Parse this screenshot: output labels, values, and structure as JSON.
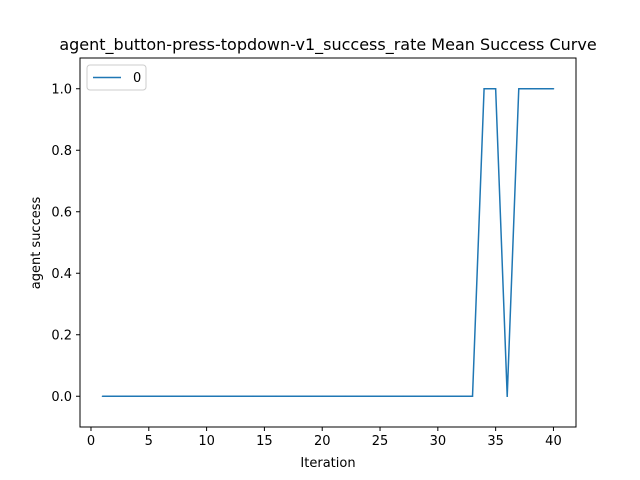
{
  "chart_data": {
    "type": "line",
    "title": "agent_button-press-topdown-v1_success_rate Mean Success Curve",
    "xlabel": "Iteration",
    "ylabel": "agent success",
    "xlim": [
      -0.95,
      41.95
    ],
    "ylim": [
      -0.1,
      1.1
    ],
    "xticks": [
      0,
      5,
      10,
      15,
      20,
      25,
      30,
      35,
      40
    ],
    "yticks": [
      0.0,
      0.2,
      0.4,
      0.6,
      0.8,
      1.0
    ],
    "xtick_labels": [
      "0",
      "5",
      "10",
      "15",
      "20",
      "25",
      "30",
      "35",
      "40"
    ],
    "ytick_labels": [
      "0.0",
      "0.2",
      "0.4",
      "0.6",
      "0.8",
      "1.0"
    ],
    "grid": false,
    "legend_position": "top-left",
    "series": [
      {
        "name": "0",
        "color": "#1f77b4",
        "x": [
          1,
          2,
          3,
          4,
          5,
          6,
          7,
          8,
          9,
          10,
          11,
          12,
          13,
          14,
          15,
          16,
          17,
          18,
          19,
          20,
          21,
          22,
          23,
          24,
          25,
          26,
          27,
          28,
          29,
          30,
          31,
          32,
          33,
          34,
          35,
          36,
          37,
          38,
          39,
          40
        ],
        "y": [
          0,
          0,
          0,
          0,
          0,
          0,
          0,
          0,
          0,
          0,
          0,
          0,
          0,
          0,
          0,
          0,
          0,
          0,
          0,
          0,
          0,
          0,
          0,
          0,
          0,
          0,
          0,
          0,
          0,
          0,
          0,
          0,
          0,
          1,
          1,
          0,
          1,
          1,
          1,
          1
        ]
      }
    ]
  }
}
